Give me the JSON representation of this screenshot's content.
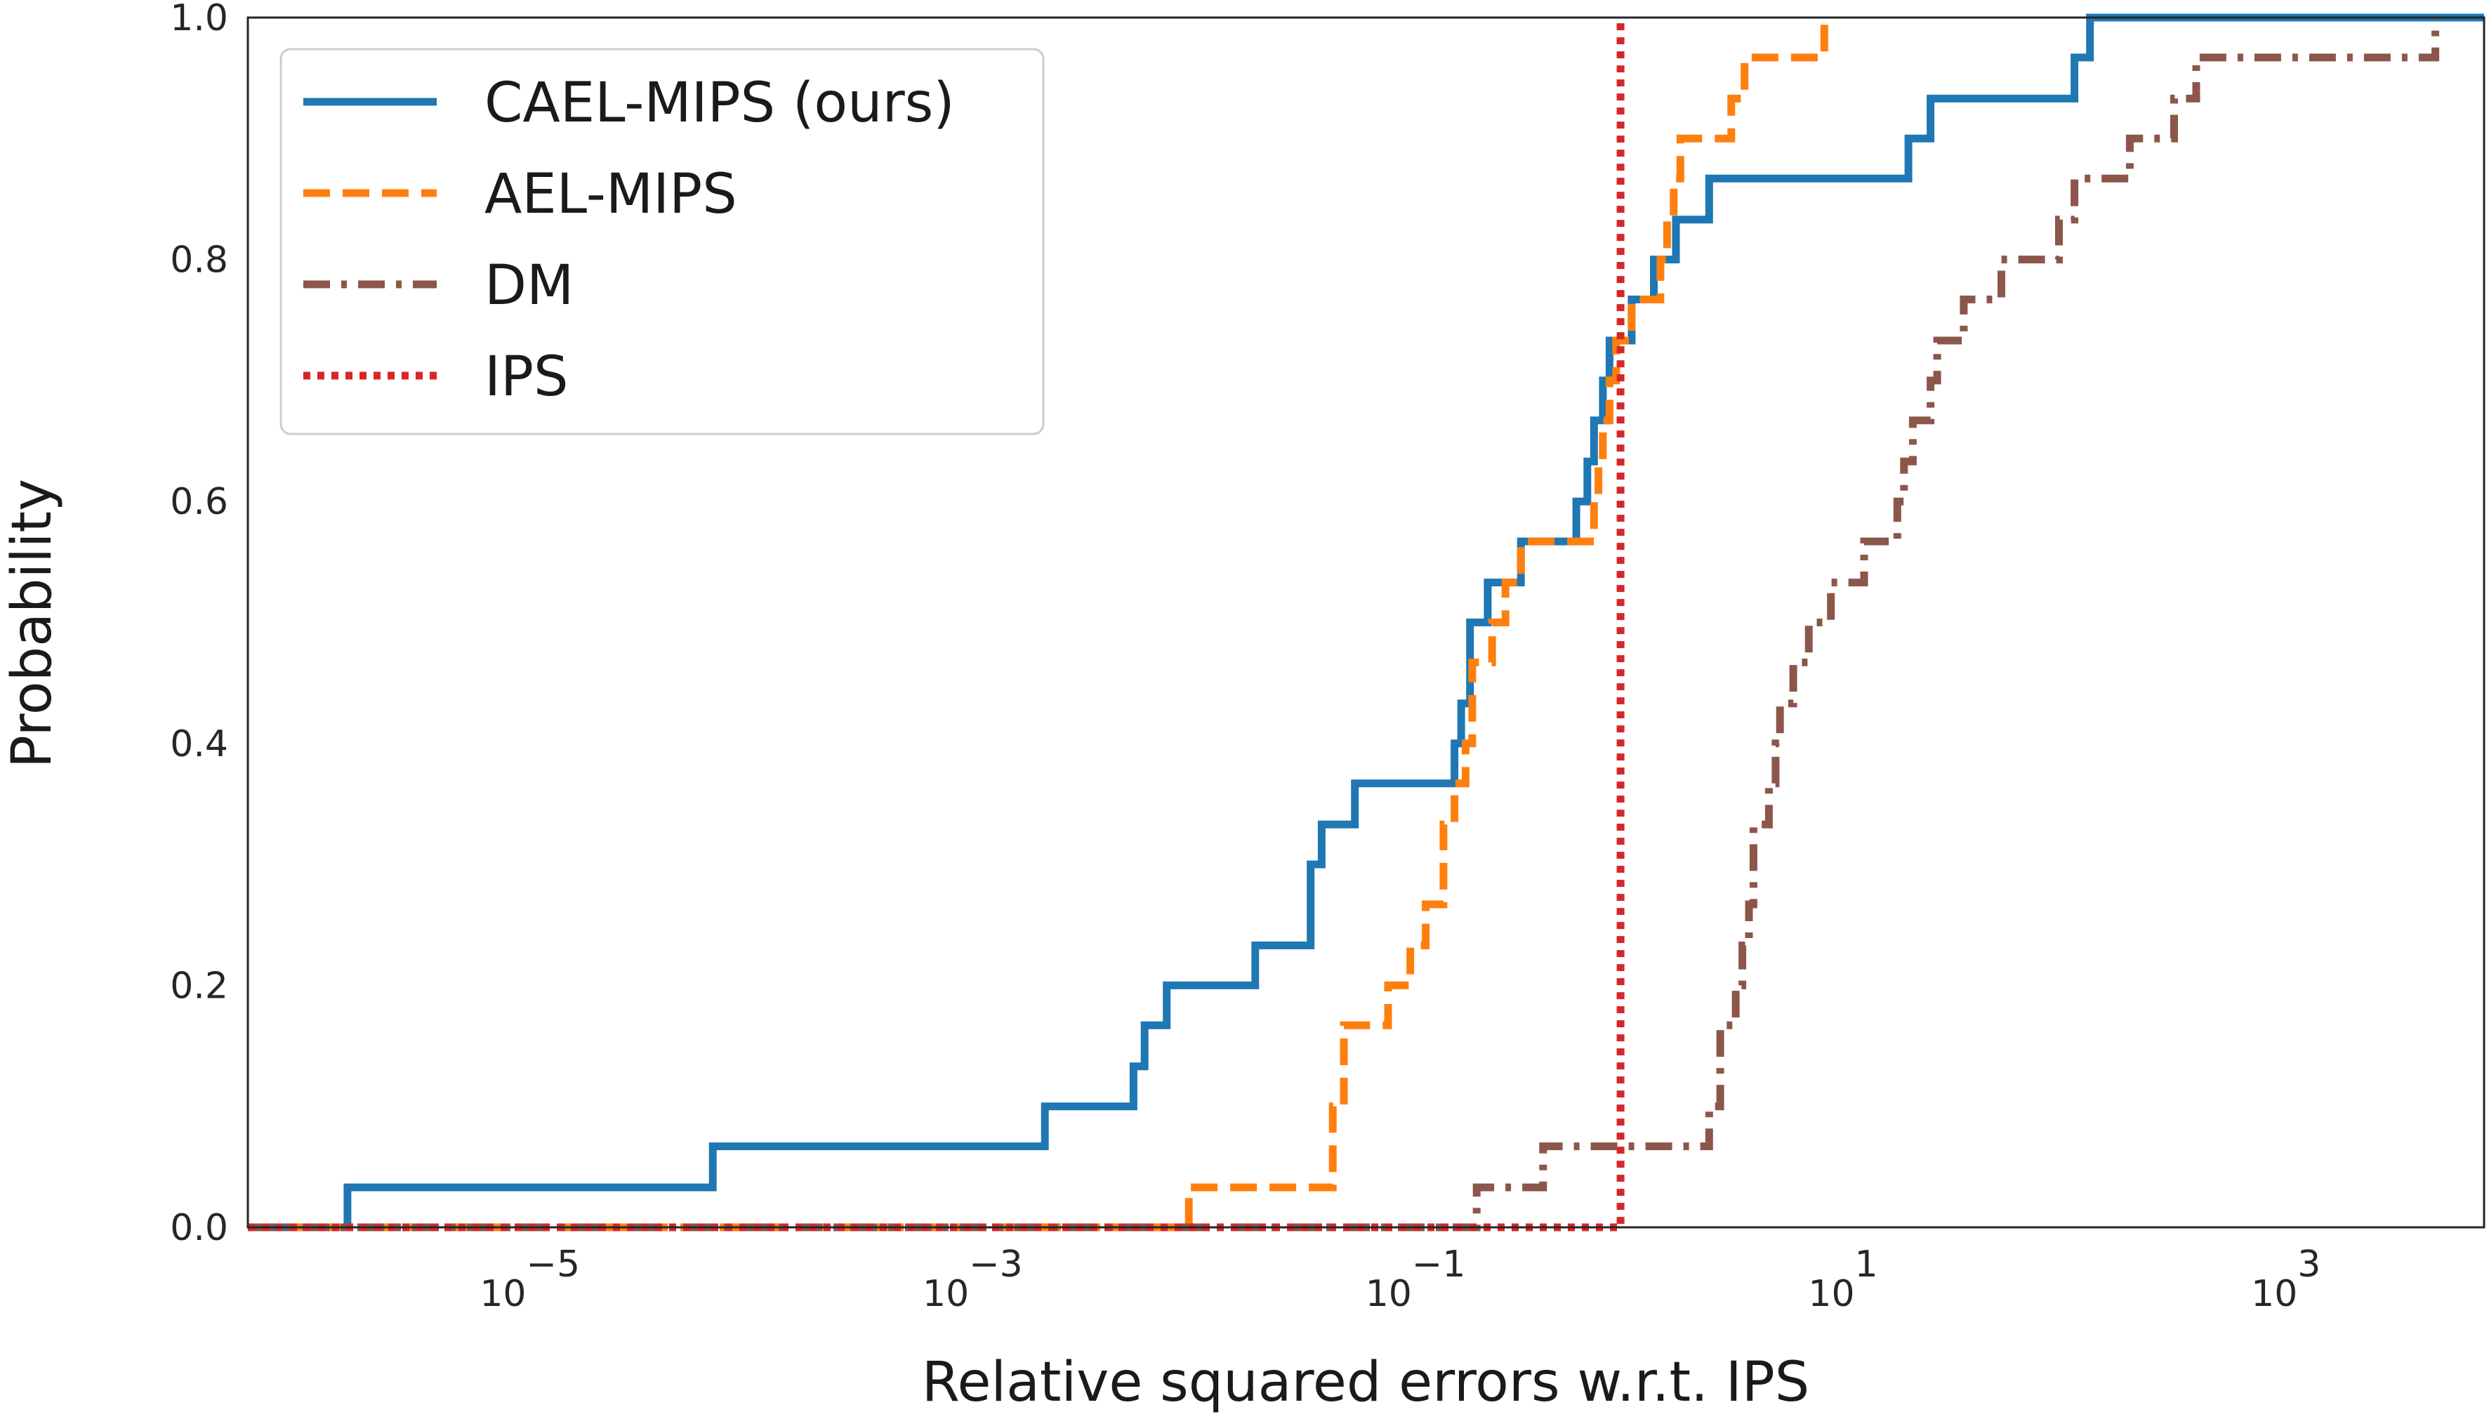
{
  "chart_data": {
    "type": "line",
    "subtype": "empirical-cdf-step",
    "title": "",
    "xlabel": "Relative squared errors w.r.t. IPS",
    "ylabel": "Probability",
    "xscale": "log",
    "xlim_log10": [
      -6.2,
      3.9
    ],
    "ylim": [
      0.0,
      1.0
    ],
    "grid": false,
    "legend_position": "top-left",
    "x_ticks": [
      {
        "base": "10",
        "exp": "−5",
        "log10": -5
      },
      {
        "base": "10",
        "exp": "−3",
        "log10": -3
      },
      {
        "base": "10",
        "exp": "−1",
        "log10": -1
      },
      {
        "base": "10",
        "exp": "1",
        "log10": 1
      },
      {
        "base": "10",
        "exp": "3",
        "log10": 3
      }
    ],
    "y_ticks": [
      {
        "label": "0.0",
        "value": 0.0
      },
      {
        "label": "0.2",
        "value": 0.2
      },
      {
        "label": "0.4",
        "value": 0.4
      },
      {
        "label": "0.6",
        "value": 0.6
      },
      {
        "label": "0.8",
        "value": 0.8
      },
      {
        "label": "1.0",
        "value": 1.0
      }
    ],
    "series": [
      {
        "name": "CAEL-MIPS (ours)",
        "color": "#1f77b4",
        "style": "solid",
        "start_log10": -6.2,
        "end_log10": 3.9,
        "steps": [
          [
            -5.75,
            0.033
          ],
          [
            -4.1,
            0.067
          ],
          [
            -2.6,
            0.1
          ],
          [
            -2.2,
            0.133
          ],
          [
            -2.15,
            0.167
          ],
          [
            -2.05,
            0.2
          ],
          [
            -1.65,
            0.233
          ],
          [
            -1.4,
            0.3
          ],
          [
            -1.35,
            0.333
          ],
          [
            -1.2,
            0.367
          ],
          [
            -0.75,
            0.4
          ],
          [
            -0.72,
            0.433
          ],
          [
            -0.68,
            0.5
          ],
          [
            -0.6,
            0.533
          ],
          [
            -0.45,
            0.567
          ],
          [
            -0.2,
            0.6
          ],
          [
            -0.15,
            0.633
          ],
          [
            -0.12,
            0.667
          ],
          [
            -0.08,
            0.7
          ],
          [
            -0.05,
            0.733
          ],
          [
            0.05,
            0.767
          ],
          [
            0.15,
            0.8
          ],
          [
            0.25,
            0.833
          ],
          [
            0.4,
            0.867
          ],
          [
            1.3,
            0.9
          ],
          [
            1.4,
            0.933
          ],
          [
            2.05,
            0.967
          ],
          [
            2.12,
            1.0
          ]
        ]
      },
      {
        "name": "AEL-MIPS",
        "color": "#ff7f0e",
        "style": "dashed",
        "start_log10": -6.2,
        "end_log10": 0.92,
        "steps": [
          [
            -1.95,
            0.033
          ],
          [
            -1.3,
            0.1
          ],
          [
            -1.25,
            0.167
          ],
          [
            -1.05,
            0.2
          ],
          [
            -0.95,
            0.233
          ],
          [
            -0.88,
            0.267
          ],
          [
            -0.8,
            0.333
          ],
          [
            -0.75,
            0.367
          ],
          [
            -0.7,
            0.4
          ],
          [
            -0.67,
            0.467
          ],
          [
            -0.58,
            0.5
          ],
          [
            -0.52,
            0.533
          ],
          [
            -0.45,
            0.567
          ],
          [
            -0.12,
            0.6
          ],
          [
            -0.1,
            0.633
          ],
          [
            -0.08,
            0.667
          ],
          [
            -0.05,
            0.7
          ],
          [
            -0.02,
            0.733
          ],
          [
            0.05,
            0.767
          ],
          [
            0.18,
            0.8
          ],
          [
            0.21,
            0.833
          ],
          [
            0.24,
            0.867
          ],
          [
            0.27,
            0.9
          ],
          [
            0.5,
            0.933
          ],
          [
            0.56,
            0.967
          ],
          [
            0.92,
            1.0
          ]
        ]
      },
      {
        "name": "DM",
        "color": "#8c564b",
        "style": "dashdot",
        "start_log10": -6.2,
        "end_log10": 3.68,
        "steps": [
          [
            -0.65,
            0.033
          ],
          [
            -0.35,
            0.067
          ],
          [
            0.4,
            0.1
          ],
          [
            0.45,
            0.167
          ],
          [
            0.52,
            0.2
          ],
          [
            0.55,
            0.233
          ],
          [
            0.58,
            0.267
          ],
          [
            0.6,
            0.333
          ],
          [
            0.67,
            0.367
          ],
          [
            0.7,
            0.4
          ],
          [
            0.72,
            0.433
          ],
          [
            0.78,
            0.467
          ],
          [
            0.85,
            0.5
          ],
          [
            0.95,
            0.533
          ],
          [
            1.1,
            0.567
          ],
          [
            1.25,
            0.6
          ],
          [
            1.28,
            0.633
          ],
          [
            1.32,
            0.667
          ],
          [
            1.4,
            0.7
          ],
          [
            1.43,
            0.733
          ],
          [
            1.55,
            0.767
          ],
          [
            1.72,
            0.8
          ],
          [
            1.98,
            0.833
          ],
          [
            2.05,
            0.867
          ],
          [
            2.3,
            0.9
          ],
          [
            2.5,
            0.933
          ],
          [
            2.6,
            0.967
          ],
          [
            3.68,
            1.0
          ]
        ]
      },
      {
        "name": "IPS",
        "color": "#d62728",
        "style": "dotted",
        "start_log10": -6.2,
        "end_log10": 0.0,
        "steps": [
          [
            0.0,
            1.0
          ]
        ]
      }
    ]
  }
}
